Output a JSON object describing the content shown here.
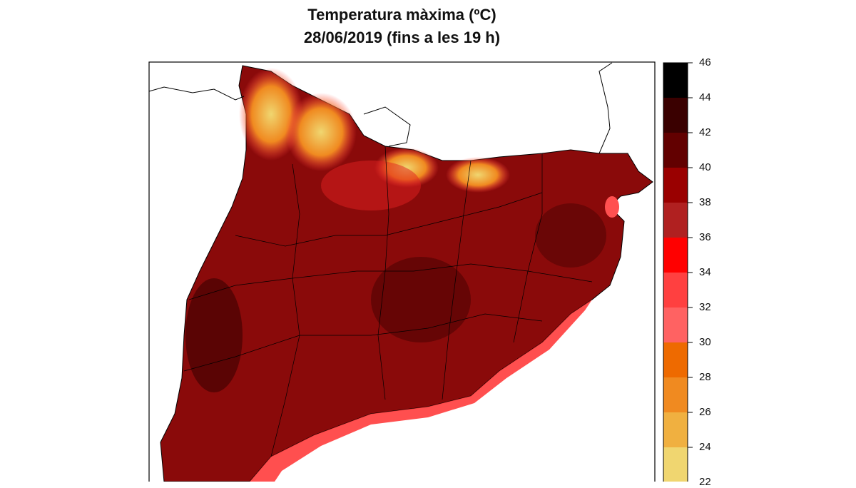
{
  "title": "Temperatura màxima (ºC)",
  "subtitle": "28/06/2019 (fins a les 19 h)",
  "legend": {
    "ticks": [
      "46",
      "44",
      "42",
      "40",
      "38",
      "36",
      "34",
      "32",
      "30",
      "28",
      "26",
      "24",
      "22"
    ],
    "bins": [
      {
        "range": [
          44,
          46
        ],
        "color": "#000000"
      },
      {
        "range": [
          42,
          44
        ],
        "color": "#3a0000"
      },
      {
        "range": [
          40,
          42
        ],
        "color": "#620000"
      },
      {
        "range": [
          38,
          40
        ],
        "color": "#9a0000"
      },
      {
        "range": [
          36,
          38
        ],
        "color": "#b02020"
      },
      {
        "range": [
          34,
          36
        ],
        "color": "#ff0000"
      },
      {
        "range": [
          32,
          34
        ],
        "color": "#ff4040"
      },
      {
        "range": [
          30,
          32
        ],
        "color": "#ff6262"
      },
      {
        "range": [
          28,
          30
        ],
        "color": "#ee6a00"
      },
      {
        "range": [
          26,
          28
        ],
        "color": "#f08a20"
      },
      {
        "range": [
          24,
          26
        ],
        "color": "#f0b040"
      },
      {
        "range": [
          22,
          24
        ],
        "color": "#f0d670"
      }
    ]
  }
}
